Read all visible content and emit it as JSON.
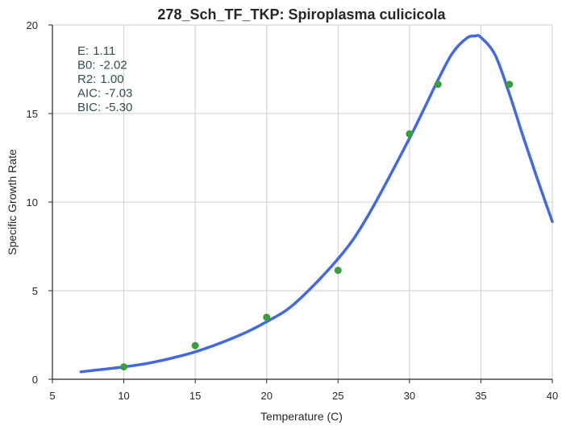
{
  "chart_data": {
    "type": "line",
    "title": "278_Sch_TF_TKP: Spiroplasma culicicola",
    "xlabel": "Temperature (C)",
    "ylabel": "Specific Growth Rate",
    "xlim": [
      5,
      40
    ],
    "ylim": [
      0,
      20
    ],
    "xticks": [
      "5",
      "10",
      "15",
      "20",
      "25",
      "30",
      "35",
      "40"
    ],
    "yticks": [
      "0",
      "5",
      "10",
      "15",
      "20"
    ],
    "grid": true,
    "series": [
      {
        "kind": "scatter",
        "color": "#3a9e3a",
        "x": [
          10,
          15,
          20,
          25,
          30,
          32,
          37
        ],
        "y": [
          0.7,
          1.9,
          3.5,
          6.15,
          13.85,
          16.65,
          16.65
        ]
      },
      {
        "kind": "line",
        "color": "#4169e1",
        "x": [
          7,
          10,
          12,
          15,
          18,
          20,
          22,
          25,
          27,
          30,
          32,
          33,
          34,
          34.6,
          35,
          36,
          37,
          38,
          39,
          40
        ],
        "y": [
          0.42,
          0.7,
          0.95,
          1.55,
          2.45,
          3.25,
          4.3,
          6.8,
          9.1,
          13.6,
          16.9,
          18.4,
          19.25,
          19.38,
          19.3,
          18.3,
          16.1,
          13.6,
          11.2,
          8.9
        ]
      }
    ],
    "stats": [
      {
        "label": "E:",
        "value": "1.11"
      },
      {
        "label": "B0:",
        "value": "-2.02"
      },
      {
        "label": "R2:",
        "value": "1.00"
      },
      {
        "label": "AIC:",
        "value": "-7.03"
      },
      {
        "label": "BIC:",
        "value": "-5.30"
      }
    ]
  }
}
